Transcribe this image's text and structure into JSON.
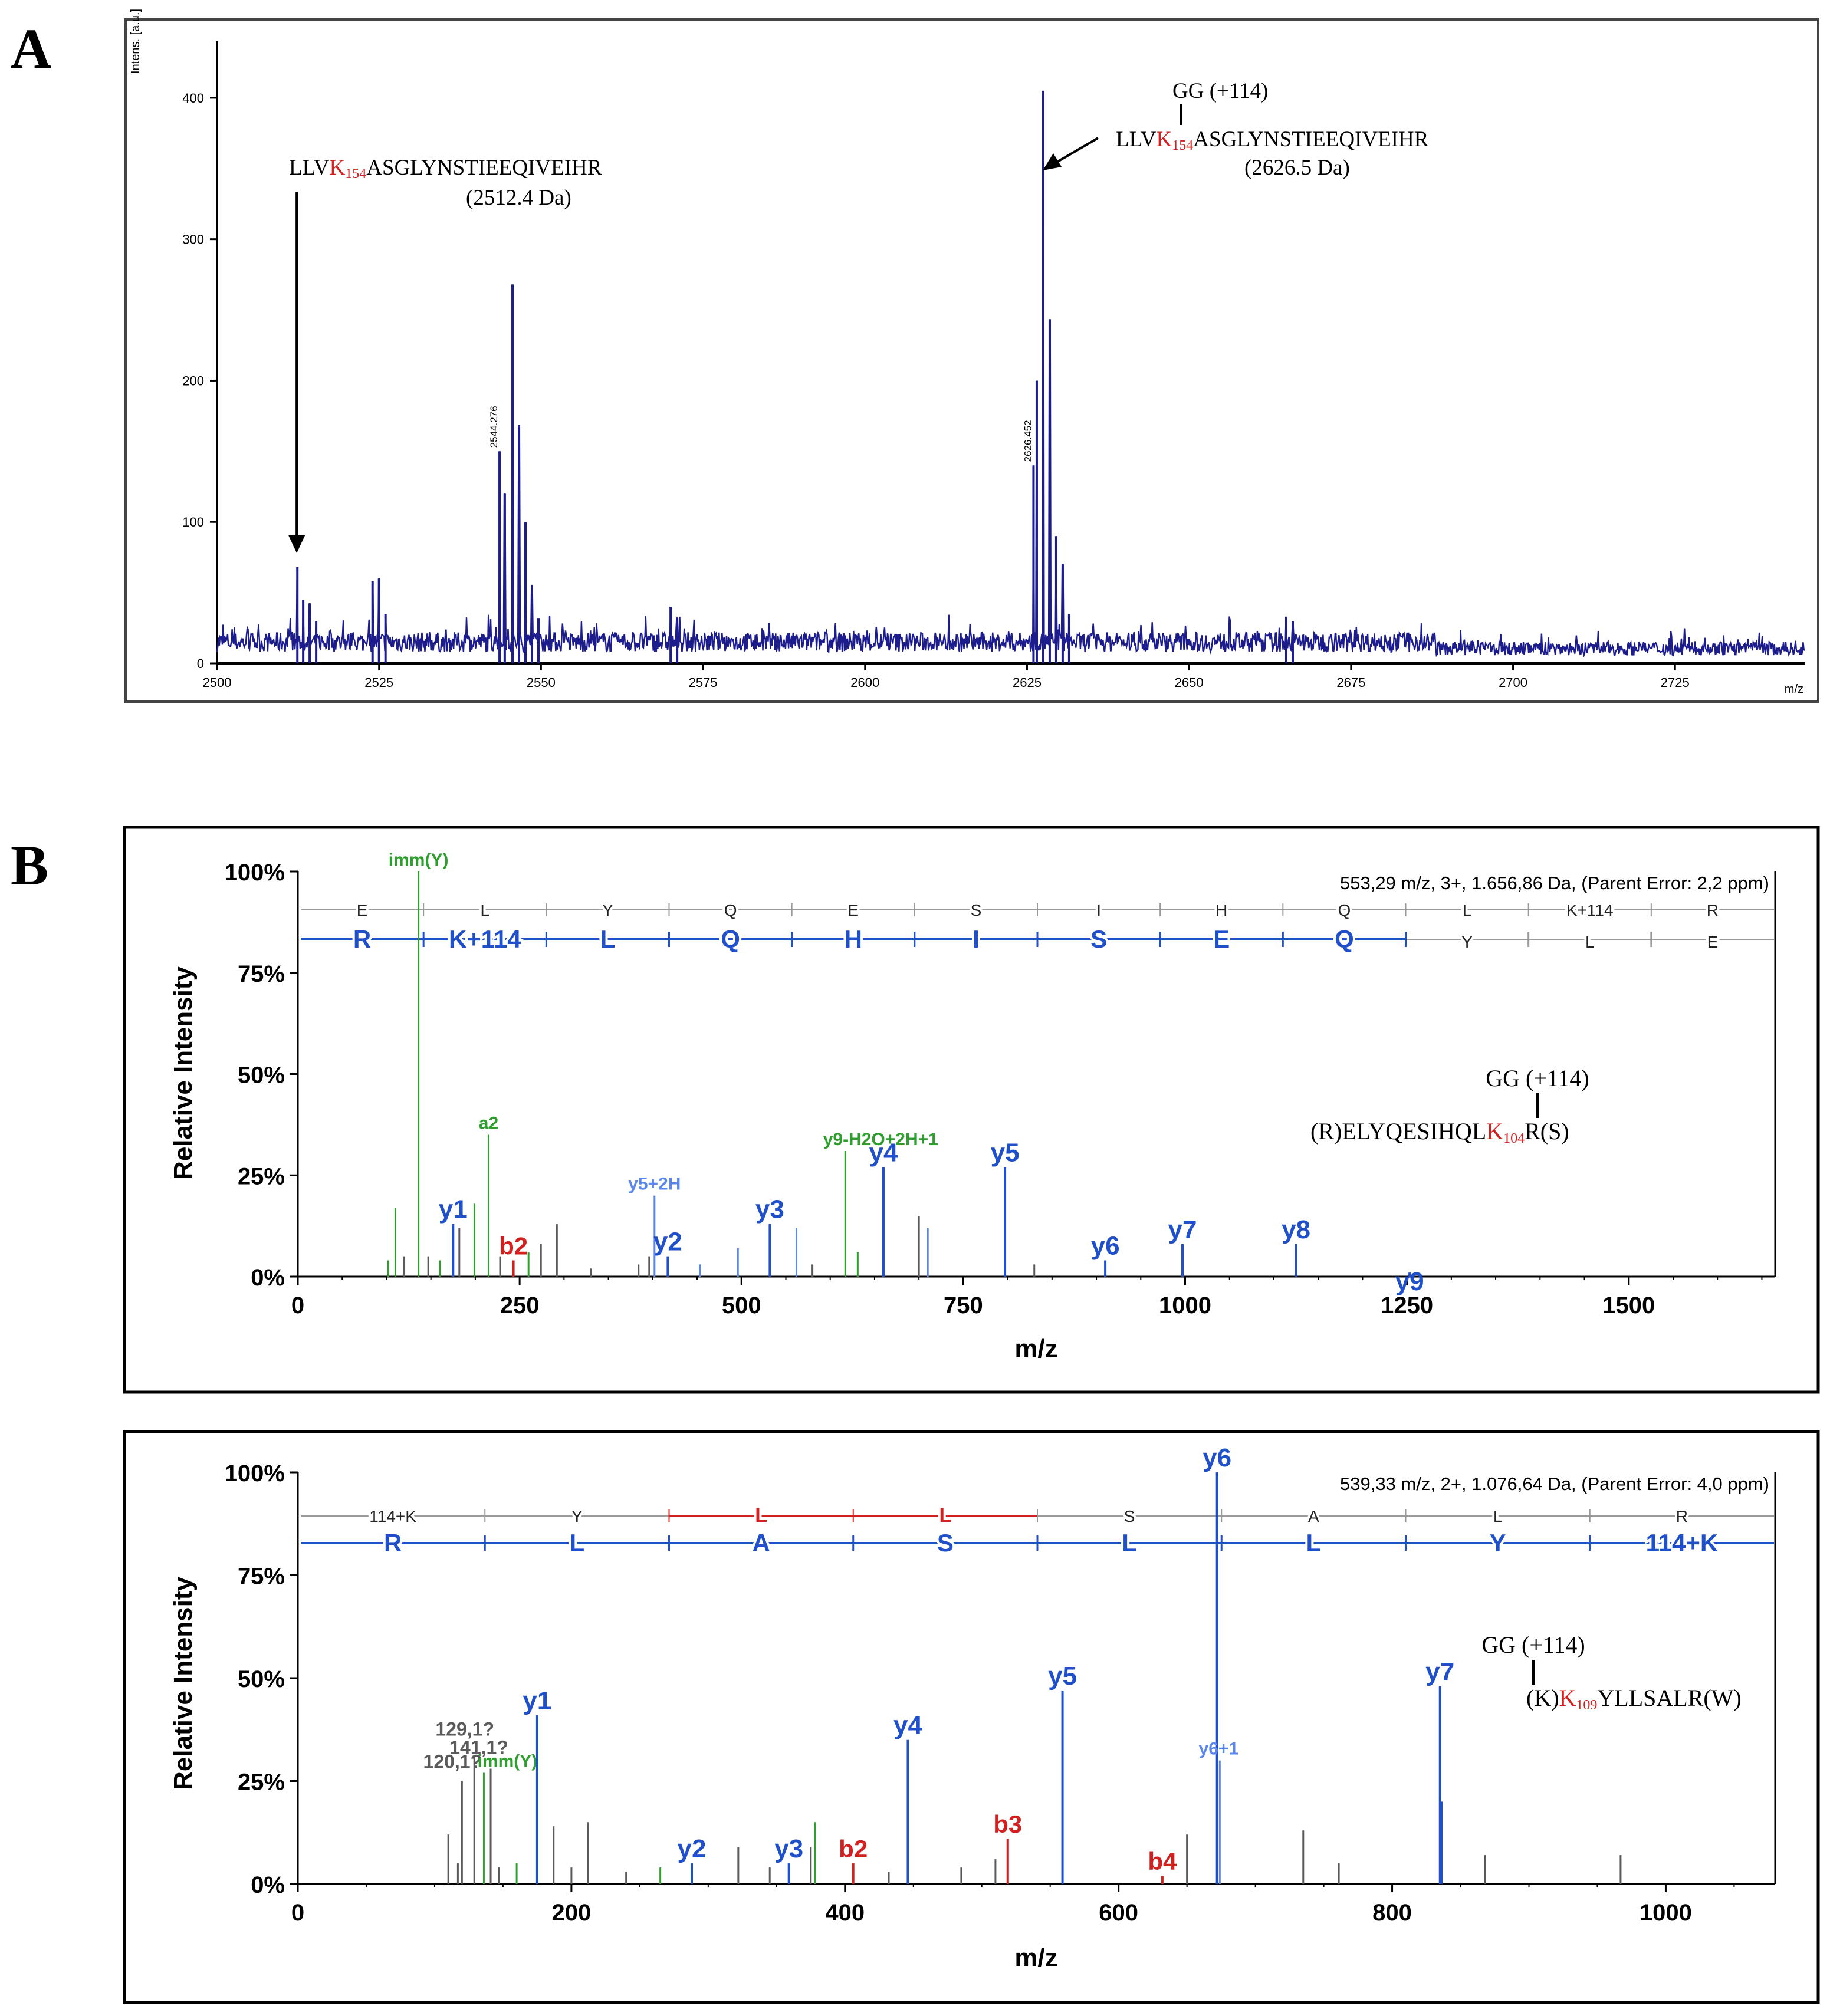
{
  "figure": {
    "panel_labels": [
      "A",
      "B"
    ]
  },
  "colors": {
    "navy": "#1c1c8c",
    "blue": "#1f4fc9",
    "light_blue": "#5b86ec",
    "green": "#2f9e2f",
    "red": "#d22020",
    "grey": "#5a5a5a",
    "black": "#000000"
  },
  "chart_data": [
    {
      "id": "A",
      "type": "line",
      "title": "",
      "xlabel": "m/z",
      "ylabel": "Intens. [a.u.]",
      "xlim": [
        2500,
        2745
      ],
      "ylim": [
        0,
        440
      ],
      "x_ticks": [
        2500,
        2525,
        2550,
        2575,
        2600,
        2625,
        2650,
        2675,
        2700,
        2725
      ],
      "y_ticks": [
        0,
        100,
        200,
        300,
        400
      ],
      "peaks": [
        {
          "x": 2512.4,
          "y": 68
        },
        {
          "x": 2513.3,
          "y": 45
        },
        {
          "x": 2514.3,
          "y": 42
        },
        {
          "x": 2515.3,
          "y": 30
        },
        {
          "x": 2524.0,
          "y": 58
        },
        {
          "x": 2525.0,
          "y": 60
        },
        {
          "x": 2526.0,
          "y": 35
        },
        {
          "x": 2543.6,
          "y": 150
        },
        {
          "x": 2544.4,
          "y": 120
        },
        {
          "x": 2545.6,
          "y": 268
        },
        {
          "x": 2546.6,
          "y": 168
        },
        {
          "x": 2547.6,
          "y": 100
        },
        {
          "x": 2548.6,
          "y": 55
        },
        {
          "x": 2549.6,
          "y": 32
        },
        {
          "x": 2570.0,
          "y": 40
        },
        {
          "x": 2571.0,
          "y": 32
        },
        {
          "x": 2626.0,
          "y": 140
        },
        {
          "x": 2626.5,
          "y": 200
        },
        {
          "x": 2627.5,
          "y": 405
        },
        {
          "x": 2628.5,
          "y": 243
        },
        {
          "x": 2629.5,
          "y": 90
        },
        {
          "x": 2630.5,
          "y": 70
        },
        {
          "x": 2631.5,
          "y": 35
        },
        {
          "x": 2665.0,
          "y": 33
        },
        {
          "x": 2666.0,
          "y": 30
        }
      ],
      "peak_labels": [
        {
          "x": 2543.6,
          "y": 150,
          "text": "2544.276"
        },
        {
          "x": 2626.0,
          "y": 140,
          "text": "2626.452"
        }
      ],
      "annotations": [
        {
          "id": "a1",
          "x": 2512.3,
          "y": 78,
          "text_pre": "LLV",
          "text_mod": "K",
          "text_sub": "154",
          "text_post": "ASGLYNSTIEEQIVEIHR",
          "mass": "(2512.4 Da)"
        },
        {
          "id": "a2",
          "x": 2628.0,
          "y": 345,
          "mod": "GG (+114)",
          "text_pre": "LLV",
          "text_mod": "K",
          "text_sub": "154",
          "text_post": "ASGLYNSTIEEQIVEIHR",
          "mass": "(2626.5 Da)"
        }
      ]
    },
    {
      "id": "B1",
      "type": "bar",
      "xlabel": "m/z",
      "ylabel": "Relative Intensity",
      "xlim": [
        0,
        1665
      ],
      "ylim": [
        0,
        100
      ],
      "x_ticks": [
        0,
        250,
        500,
        750,
        1000,
        1250,
        1500
      ],
      "y_ticks": [
        0,
        25,
        50,
        75,
        100
      ],
      "y_tick_labels": [
        "0%",
        "25%",
        "50%",
        "75%",
        "100%"
      ],
      "info": "553,29 m/z, 3+, 1.656,86 Da,  (Parent Error: 2,2 ppm)",
      "b_sequence": [
        "E",
        "L",
        "Y",
        "Q",
        "E",
        "S",
        "I",
        "H",
        "Q",
        "L",
        "K+114",
        "R"
      ],
      "y_sequence": [
        "R",
        "K+114",
        "L",
        "Q",
        "H",
        "I",
        "S",
        "E",
        "Q",
        "Y",
        "L",
        "E"
      ],
      "y_sequence_colored": 9,
      "peptide": {
        "mod": "GG (+114)",
        "pre": "(R)ELYQESIHQL",
        "mod_res": "K",
        "sub": "104",
        "post": "R(S)"
      },
      "peaks": [
        {
          "mz": 102,
          "rel": 4,
          "kind": "green"
        },
        {
          "mz": 110,
          "rel": 17,
          "kind": "green"
        },
        {
          "mz": 120,
          "rel": 5,
          "kind": "grey"
        },
        {
          "mz": 136,
          "rel": 100,
          "kind": "green",
          "label": "imm(Y)"
        },
        {
          "mz": 147,
          "rel": 5,
          "kind": "grey"
        },
        {
          "mz": 160,
          "rel": 4,
          "kind": "green"
        },
        {
          "mz": 175,
          "rel": 13,
          "kind": "blue",
          "label": "y1"
        },
        {
          "mz": 182,
          "rel": 12,
          "kind": "grey"
        },
        {
          "mz": 199,
          "rel": 18,
          "kind": "green"
        },
        {
          "mz": 215,
          "rel": 35,
          "kind": "green",
          "label": "a2"
        },
        {
          "mz": 228,
          "rel": 5,
          "kind": "grey"
        },
        {
          "mz": 243,
          "rel": 4,
          "kind": "red",
          "label": "b2"
        },
        {
          "mz": 260,
          "rel": 6,
          "kind": "green"
        },
        {
          "mz": 274,
          "rel": 8,
          "kind": "grey"
        },
        {
          "mz": 292,
          "rel": 13,
          "kind": "grey"
        },
        {
          "mz": 330,
          "rel": 2,
          "kind": "grey"
        },
        {
          "mz": 384,
          "rel": 3,
          "kind": "grey"
        },
        {
          "mz": 396,
          "rel": 5,
          "kind": "grey"
        },
        {
          "mz": 402,
          "rel": 20,
          "kind": "lightblue",
          "label": "y5+2H"
        },
        {
          "mz": 417,
          "rel": 5,
          "kind": "blue",
          "label": "y2"
        },
        {
          "mz": 453,
          "rel": 3,
          "kind": "lightblue"
        },
        {
          "mz": 496,
          "rel": 7,
          "kind": "lightblue"
        },
        {
          "mz": 532,
          "rel": 13,
          "kind": "blue",
          "label": "y3"
        },
        {
          "mz": 562,
          "rel": 12,
          "kind": "lightblue"
        },
        {
          "mz": 580,
          "rel": 3,
          "kind": "grey"
        },
        {
          "mz": 617,
          "rel": 31,
          "kind": "green",
          "label": "y9-H2O+2H+1"
        },
        {
          "mz": 631,
          "rel": 6,
          "kind": "green"
        },
        {
          "mz": 660,
          "rel": 27,
          "kind": "blue",
          "label": "y4"
        },
        {
          "mz": 700,
          "rel": 15,
          "kind": "grey"
        },
        {
          "mz": 710,
          "rel": 12,
          "kind": "lightblue"
        },
        {
          "mz": 797,
          "rel": 27,
          "kind": "blue",
          "label": "y5"
        },
        {
          "mz": 830,
          "rel": 3,
          "kind": "grey"
        },
        {
          "mz": 910,
          "rel": 4,
          "kind": "blue",
          "label": "y6"
        },
        {
          "mz": 997,
          "rel": 8,
          "kind": "blue",
          "label": "y7"
        },
        {
          "mz": 1125,
          "rel": 8,
          "kind": "blue",
          "label": "y8"
        },
        {
          "mz": 1253,
          "rel": 1,
          "kind": "blue",
          "label": "y9"
        }
      ]
    },
    {
      "id": "B2",
      "type": "bar",
      "xlabel": "m/z",
      "ylabel": "Relative Intensity",
      "xlim": [
        0,
        1080
      ],
      "ylim": [
        0,
        100
      ],
      "x_ticks": [
        0,
        200,
        400,
        600,
        800,
        1000
      ],
      "y_ticks": [
        0,
        25,
        50,
        75,
        100
      ],
      "y_tick_labels": [
        "0%",
        "25%",
        "50%",
        "75%",
        "100%"
      ],
      "info": "539,33 m/z, 2+, 1.076,64 Da,  (Parent Error: 4,0 ppm)",
      "b_sequence": [
        "114+K",
        "Y",
        "L",
        "L",
        "S",
        "A",
        "L",
        "R"
      ],
      "b_sequence_red": [
        2,
        3
      ],
      "y_sequence": [
        "R",
        "L",
        "A",
        "S",
        "L",
        "L",
        "Y",
        "114+K"
      ],
      "peptide": {
        "mod": "GG (+114)",
        "pre": "(K)",
        "mod_res": "K",
        "sub": "109",
        "post": "YLLSALR(W)"
      },
      "peaks": [
        {
          "mz": 110,
          "rel": 12,
          "kind": "grey"
        },
        {
          "mz": 117,
          "rel": 5,
          "kind": "grey"
        },
        {
          "mz": 120,
          "rel": 25,
          "kind": "grey",
          "label": "120,1?"
        },
        {
          "mz": 129,
          "rel": 31,
          "kind": "grey",
          "label": "129,1?"
        },
        {
          "mz": 136,
          "rel": 27,
          "kind": "green",
          "label": "imm(Y)"
        },
        {
          "mz": 141,
          "rel": 28,
          "kind": "grey",
          "label": "141,1?"
        },
        {
          "mz": 147,
          "rel": 4,
          "kind": "grey"
        },
        {
          "mz": 160,
          "rel": 5,
          "kind": "green"
        },
        {
          "mz": 175,
          "rel": 41,
          "kind": "blue",
          "label": "y1"
        },
        {
          "mz": 187,
          "rel": 14,
          "kind": "grey"
        },
        {
          "mz": 200,
          "rel": 4,
          "kind": "grey"
        },
        {
          "mz": 212,
          "rel": 15,
          "kind": "grey"
        },
        {
          "mz": 240,
          "rel": 3,
          "kind": "grey"
        },
        {
          "mz": 265,
          "rel": 4,
          "kind": "green"
        },
        {
          "mz": 288,
          "rel": 5,
          "kind": "blue",
          "label": "y2"
        },
        {
          "mz": 322,
          "rel": 9,
          "kind": "grey"
        },
        {
          "mz": 345,
          "rel": 4,
          "kind": "grey"
        },
        {
          "mz": 359,
          "rel": 5,
          "kind": "blue",
          "label": "y3"
        },
        {
          "mz": 375,
          "rel": 9,
          "kind": "grey"
        },
        {
          "mz": 378,
          "rel": 15,
          "kind": "green"
        },
        {
          "mz": 406,
          "rel": 5,
          "kind": "red",
          "label": "b2"
        },
        {
          "mz": 432,
          "rel": 3,
          "kind": "grey"
        },
        {
          "mz": 446,
          "rel": 35,
          "kind": "blue",
          "label": "y4"
        },
        {
          "mz": 485,
          "rel": 4,
          "kind": "grey"
        },
        {
          "mz": 510,
          "rel": 6,
          "kind": "grey"
        },
        {
          "mz": 519,
          "rel": 11,
          "kind": "red",
          "label": "b3"
        },
        {
          "mz": 559,
          "rel": 47,
          "kind": "blue",
          "label": "y5"
        },
        {
          "mz": 632,
          "rel": 2,
          "kind": "red",
          "label": "b4"
        },
        {
          "mz": 650,
          "rel": 12,
          "kind": "grey"
        },
        {
          "mz": 672,
          "rel": 100,
          "kind": "blue",
          "label": "y6"
        },
        {
          "mz": 674,
          "rel": 30,
          "kind": "lightblue",
          "label": "y6+1"
        },
        {
          "mz": 735,
          "rel": 13,
          "kind": "grey"
        },
        {
          "mz": 761,
          "rel": 5,
          "kind": "grey"
        },
        {
          "mz": 835,
          "rel": 48,
          "kind": "blue",
          "label": "y7"
        },
        {
          "mz": 836,
          "rel": 20,
          "kind": "blue"
        },
        {
          "mz": 868,
          "rel": 7,
          "kind": "grey"
        },
        {
          "mz": 967,
          "rel": 7,
          "kind": "grey"
        }
      ]
    }
  ]
}
